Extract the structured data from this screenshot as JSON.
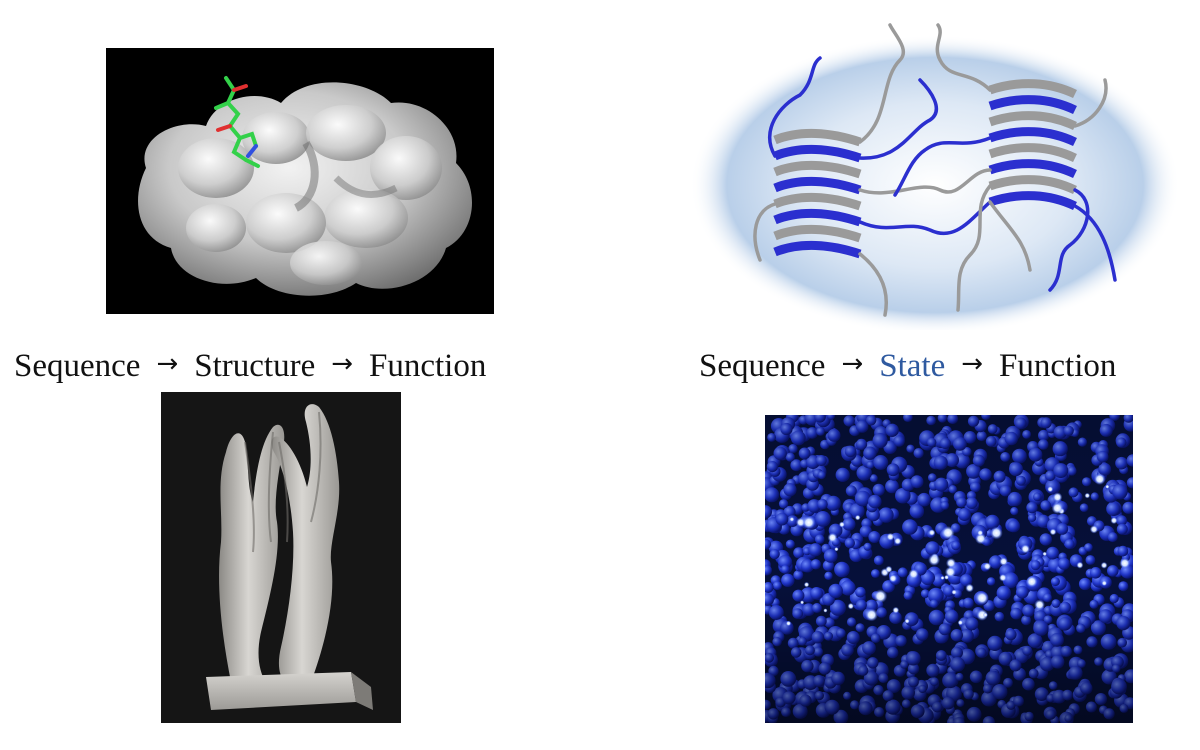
{
  "left_flow": {
    "step1": "Sequence",
    "arrow1": "→",
    "step2": "Structure",
    "arrow2": "→",
    "step3": "Function"
  },
  "right_flow": {
    "step1": "Sequence",
    "arrow1": "→",
    "step2": "State",
    "arrow2": "→",
    "step3": "Function"
  },
  "colors": {
    "state_highlight": "#2f5aa0",
    "text": "#111111",
    "fibril_blue": "#2b2fcf",
    "fibril_gray": "#9a9a9a",
    "particle_blue": "#2040d8",
    "surface_gray": "#c8c8c8"
  }
}
